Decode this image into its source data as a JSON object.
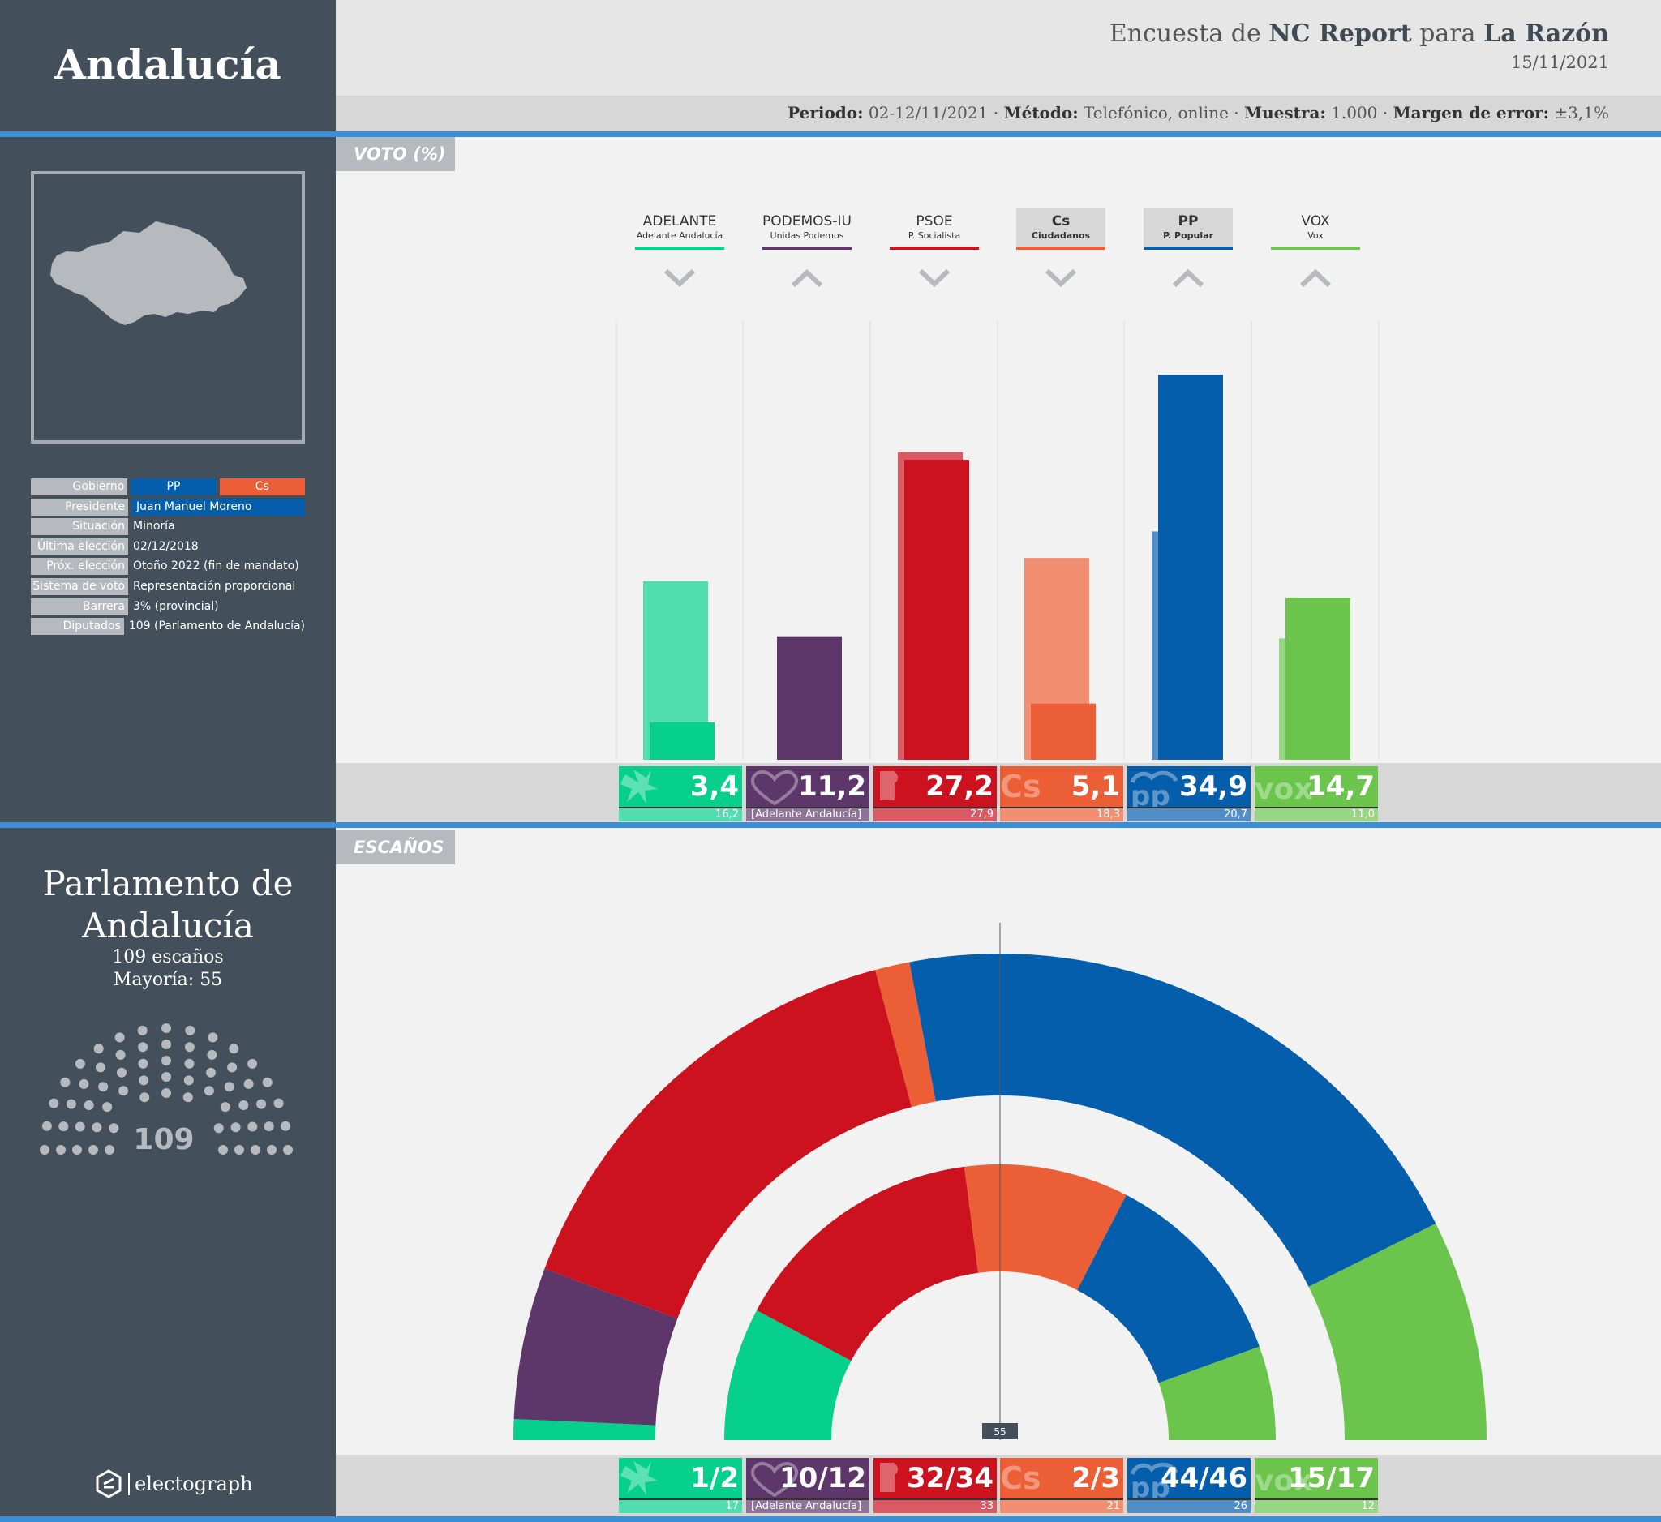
{
  "region": "Andalucía",
  "header": {
    "survey_prefix": "Encuesta de",
    "pollster": "NC Report",
    "connector": "para",
    "media": "La Razón",
    "date": "15/11/2021",
    "periodo_label": "Periodo:",
    "periodo": "02-12/11/2021",
    "metodo_label": "Método:",
    "metodo": "Telefónico, online",
    "muestra_label": "Muestra:",
    "muestra": "1.000",
    "margen_label": "Margen de error:",
    "margen": "±3,1%",
    "sep": "·"
  },
  "info": [
    {
      "key": "Gobierno",
      "value": ""
    },
    {
      "key": "Presidente",
      "value": "Juan Manuel Moreno"
    },
    {
      "key": "Situación",
      "value": "Minoría"
    },
    {
      "key": "Última elección",
      "value": "02/12/2018"
    },
    {
      "key": "Próx. elección",
      "value": "Otoño 2022 (fin de mandato)"
    },
    {
      "key": "Sistema de voto",
      "value": "Representación proporcional"
    },
    {
      "key": "Barrera",
      "value": "3% (provincial)"
    },
    {
      "key": "Diputados",
      "value": "109 (Parlamento de Andalucía)"
    }
  ],
  "government": [
    "PP",
    "Cs"
  ],
  "sections": {
    "vote": "VOTO (%)",
    "seats": "ESCAÑOS"
  },
  "parliament": {
    "title1": "Parlamento de",
    "title2": "Andalucía",
    "seats_text": "109 escaños",
    "majority_text": "Mayoría: 55",
    "total": "109",
    "majority": "55"
  },
  "brand": "electograph",
  "colors": {
    "sidebar": "#434f5a",
    "accent": "#3b8fd9",
    "ADELANTE": "#06d08b",
    "PODEMOS-IU": "#5d366a",
    "PSOE": "#cb121e",
    "Cs": "#ec5e36",
    "PP": "#055eac",
    "VOX": "#6bc54c"
  },
  "chart_data": {
    "type": "bar",
    "title": "VOTO (%)",
    "categories": [
      "ADELANTE",
      "PODEMOS-IU",
      "PSOE",
      "Cs",
      "PP",
      "VOX"
    ],
    "full_names": [
      "Adelante Andalucía",
      "Unidas Podemos",
      "P. Socialista",
      "Ciudadanos",
      "P. Popular",
      "Vox"
    ],
    "trend": [
      "down",
      "up",
      "down",
      "down",
      "up",
      "up"
    ],
    "series": [
      {
        "name": "",
        "values": [
          3.4,
          11.2,
          27.2,
          5.1,
          34.9,
          14.7
        ]
      },
      {
        "name": "",
        "values": [
          16.2,
          null,
          27.9,
          18.3,
          20.7,
          11.0
        ]
      }
    ],
    "value_labels": [
      "3,4",
      "11,2",
      "27,2",
      "5,1",
      "34,9",
      "14,7"
    ],
    "prev_labels": [
      "16,2",
      "[Adelante Andalucía]",
      "27,9",
      "18,3",
      "20,7",
      "11,0"
    ],
    "ylim": [
      0,
      40
    ],
    "seats": {
      "labels": [
        "1/2",
        "10/12",
        "32/34",
        "2/3",
        "44/46",
        "15/17"
      ],
      "prev_labels": [
        "17",
        "[Adelante Andalucía]",
        "33",
        "21",
        "26",
        "12"
      ],
      "outer_poll_mid": [
        1.5,
        11,
        33,
        2.5,
        45,
        16
      ],
      "inner_prev": [
        17,
        0,
        33,
        21,
        26,
        12
      ]
    }
  }
}
